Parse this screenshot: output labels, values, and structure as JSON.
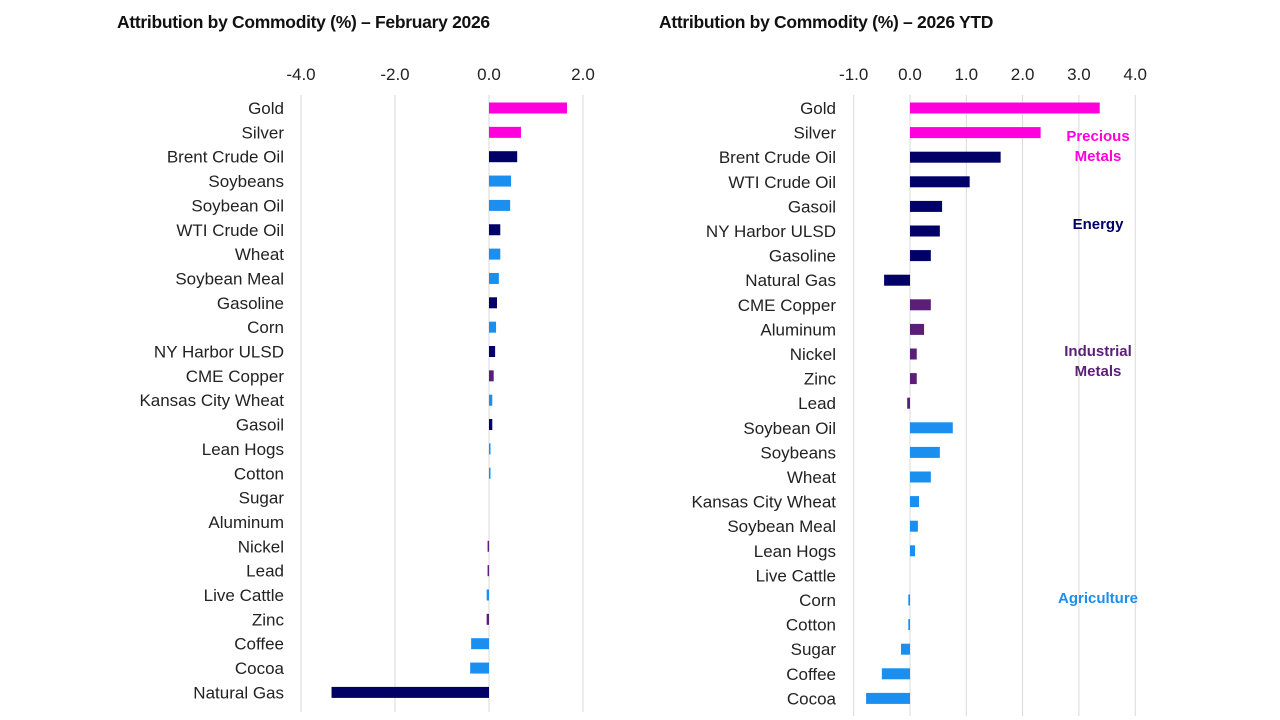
{
  "colors": {
    "precious_metals": "#ff00dd",
    "energy": "#000066",
    "industrial_metals": "#5c1f78",
    "agriculture": "#1a8ff0",
    "grid": "#d9d9d9"
  },
  "chart_data": [
    {
      "type": "bar",
      "orientation": "horizontal",
      "title": "Attribution by Commodity (%) – February 2026",
      "xlim": [
        -4.0,
        2.0
      ],
      "ticks": [
        "-4.0",
        "-2.0",
        "0.0",
        "2.0"
      ],
      "tick_values": [
        -4,
        -2,
        0,
        2
      ],
      "grid": true,
      "categories": [
        "Gold",
        "Silver",
        "Brent Crude Oil",
        "Soybeans",
        "Soybean Oil",
        "WTI Crude Oil",
        "Wheat",
        "Soybean Meal",
        "Gasoline",
        "Corn",
        "NY Harbor ULSD",
        "CME Copper",
        "Kansas City Wheat",
        "Gasoil",
        "Lean Hogs",
        "Cotton",
        "Sugar",
        "Aluminum",
        "Nickel",
        "Lead",
        "Live Cattle",
        "Zinc",
        "Coffee",
        "Cocoa",
        "Natural Gas"
      ],
      "groups": [
        "precious_metals",
        "precious_metals",
        "energy",
        "agriculture",
        "agriculture",
        "energy",
        "agriculture",
        "agriculture",
        "energy",
        "agriculture",
        "energy",
        "industrial_metals",
        "agriculture",
        "energy",
        "agriculture",
        "agriculture",
        "agriculture",
        "industrial_metals",
        "industrial_metals",
        "industrial_metals",
        "agriculture",
        "industrial_metals",
        "agriculture",
        "agriculture",
        "energy"
      ],
      "values": [
        1.66,
        0.68,
        0.6,
        0.47,
        0.45,
        0.24,
        0.24,
        0.21,
        0.17,
        0.15,
        0.13,
        0.1,
        0.07,
        0.07,
        0.03,
        0.03,
        0.0,
        0.0,
        -0.03,
        -0.03,
        -0.05,
        -0.05,
        -0.38,
        -0.4,
        -3.35
      ]
    },
    {
      "type": "bar",
      "orientation": "horizontal",
      "title": "Attribution by Commodity (%) – 2026 YTD",
      "xlim": [
        -1.0,
        4.0
      ],
      "ticks": [
        "-1.0",
        "0.0",
        "1.0",
        "2.0",
        "3.0",
        "4.0"
      ],
      "tick_values": [
        -1,
        0,
        1,
        2,
        3,
        4
      ],
      "grid": true,
      "categories": [
        "Gold",
        "Silver",
        "Brent Crude Oil",
        "WTI Crude Oil",
        "Gasoil",
        "NY Harbor ULSD",
        "Gasoline",
        "Natural Gas",
        "CME Copper",
        "Aluminum",
        "Nickel",
        "Zinc",
        "Lead",
        "Soybean Oil",
        "Soybeans",
        "Wheat",
        "Kansas City Wheat",
        "Soybean Meal",
        "Lean Hogs",
        "Live Cattle",
        "Corn",
        "Cotton",
        "Sugar",
        "Coffee",
        "Cocoa"
      ],
      "groups": [
        "precious_metals",
        "precious_metals",
        "energy",
        "energy",
        "energy",
        "energy",
        "energy",
        "energy",
        "industrial_metals",
        "industrial_metals",
        "industrial_metals",
        "industrial_metals",
        "industrial_metals",
        "agriculture",
        "agriculture",
        "agriculture",
        "agriculture",
        "agriculture",
        "agriculture",
        "agriculture",
        "agriculture",
        "agriculture",
        "agriculture",
        "agriculture",
        "agriculture"
      ],
      "values": [
        3.37,
        2.32,
        1.61,
        1.06,
        0.57,
        0.53,
        0.37,
        -0.46,
        0.37,
        0.25,
        0.12,
        0.12,
        -0.05,
        0.76,
        0.53,
        0.37,
        0.16,
        0.14,
        0.09,
        0.0,
        -0.03,
        -0.03,
        -0.16,
        -0.5,
        -0.78
      ],
      "annotations": [
        {
          "group": "precious_metals",
          "lines": [
            "Precious",
            "Metals"
          ]
        },
        {
          "group": "energy",
          "lines": [
            "Energy"
          ]
        },
        {
          "group": "industrial_metals",
          "lines": [
            "Industrial",
            "Metals"
          ]
        },
        {
          "group": "agriculture",
          "lines": [
            "Agriculture"
          ]
        }
      ]
    }
  ]
}
